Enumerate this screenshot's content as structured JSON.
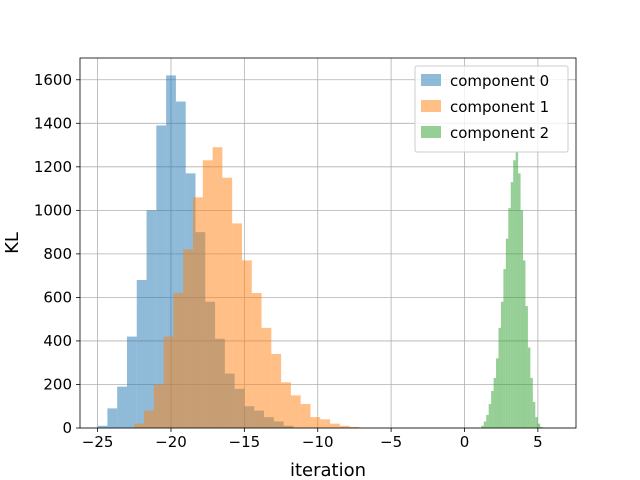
{
  "chart_data": {
    "type": "histogram",
    "xlabel": "iteration",
    "ylabel": "KL",
    "xlim": [
      -26.2,
      7.6
    ],
    "ylim": [
      0,
      1700
    ],
    "x_ticks": [
      -25,
      -20,
      -15,
      -10,
      -5,
      0,
      5
    ],
    "x_tick_labels": [
      "−25",
      "−20",
      "−15",
      "−10",
      "−5",
      "0",
      "5"
    ],
    "y_ticks": [
      0,
      200,
      400,
      600,
      800,
      1000,
      1200,
      1400,
      1600
    ],
    "y_tick_labels": [
      "0",
      "200",
      "400",
      "600",
      "800",
      "1000",
      "1200",
      "1400",
      "1600"
    ],
    "grid": true,
    "legend_position": "top-right",
    "alpha": 0.5,
    "series": [
      {
        "name": "component 0",
        "color": "#1f77b4",
        "bin_start": -25.0,
        "bin_width": 0.667,
        "counts": [
          10,
          90,
          190,
          420,
          680,
          1000,
          1390,
          1620,
          1500,
          1170,
          900,
          580,
          410,
          250,
          180,
          100,
          80,
          50,
          30,
          10
        ]
      },
      {
        "name": "component 1",
        "color": "#ff7f0e",
        "bin_start": -22.5,
        "bin_width": 0.667,
        "counts": [
          20,
          80,
          200,
          420,
          620,
          820,
          1060,
          1230,
          1290,
          1150,
          940,
          770,
          620,
          460,
          340,
          210,
          150,
          110,
          50,
          40,
          20,
          10,
          5
        ]
      },
      {
        "name": "component 2",
        "color": "#2ca02c",
        "bin_start": 1.15,
        "bin_width": 0.167,
        "counts": [
          10,
          30,
          60,
          110,
          170,
          230,
          320,
          460,
          580,
          730,
          870,
          1010,
          1130,
          1230,
          1270,
          1170,
          1000,
          770,
          560,
          370,
          230,
          120,
          50,
          20,
          5
        ]
      }
    ]
  }
}
